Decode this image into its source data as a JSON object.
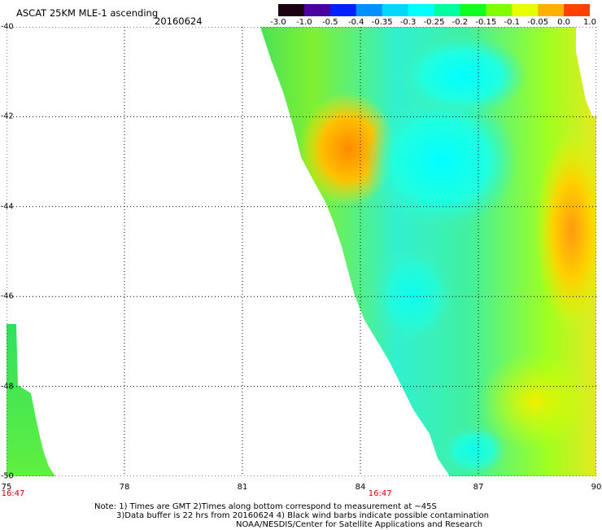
{
  "header": {
    "title": "ASCAT 25KM MLE-1 ascending",
    "date": "20160624"
  },
  "colorbar": {
    "labels": [
      "-3.0",
      "-1.0",
      "-0.5",
      "-0.4",
      "-0.35",
      "-0.3",
      "-0.25",
      "-0.2",
      "-0.15",
      "-0.1",
      "-0.05",
      "0.0",
      "1.0"
    ],
    "colors": [
      "#1a0010",
      "#4b00a0",
      "#0020ff",
      "#0090ff",
      "#00d8ff",
      "#00ffff",
      "#00ffa0",
      "#10ff20",
      "#80ff00",
      "#e8ff00",
      "#ffb000",
      "#ff4000"
    ]
  },
  "map": {
    "lon_labels": [
      "75",
      "78",
      "81",
      "84",
      "87",
      "90"
    ],
    "lon_values": [
      75,
      78,
      81,
      84,
      87,
      90
    ],
    "lat_labels": [
      "-40",
      "-42",
      "-44",
      "-46",
      "-48",
      "-50"
    ],
    "lat_values": [
      -40,
      -42,
      -44,
      -46,
      -48,
      -50
    ],
    "lon_range": [
      75,
      90
    ],
    "lat_range": [
      -40,
      -50
    ],
    "time_labels": [
      {
        "text": "16:47",
        "lon": 75
      },
      {
        "text": "16:47",
        "lon": 84.5
      }
    ]
  },
  "footer": {
    "line1": "Note: 1) Times are GMT 2)Times along bottom correspond to measurement at ~45S",
    "line2": "3)Data buffer is 22 hrs from 20160624 4) Black wind barbs indicate possible contamination",
    "line3": "NOAA/NESDIS/Center for Satellite Applications and Research"
  }
}
